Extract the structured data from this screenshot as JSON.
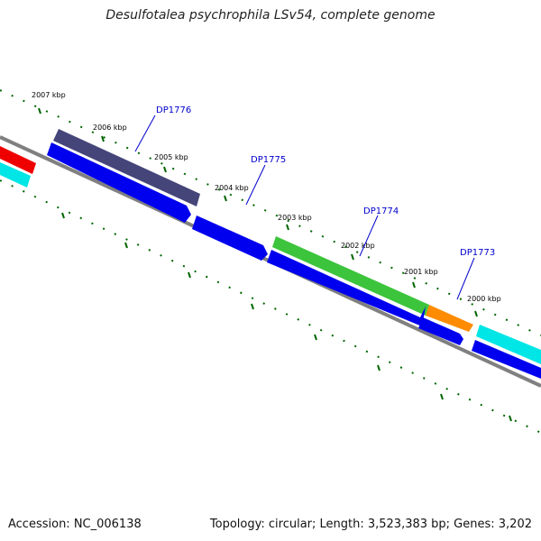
{
  "header": {
    "title": "Desulfotalea psychrophila LSv54, complete genome"
  },
  "footer": {
    "accession": "Accession: NC_006138",
    "summary": "Topology: circular; Length: 3,523,383 bp; Genes: 3,202"
  },
  "ticks": [
    {
      "label": "2007 kbp"
    },
    {
      "label": "2006 kbp"
    },
    {
      "label": "2005 kbp"
    },
    {
      "label": "2004 kbp"
    },
    {
      "label": "2003 kbp"
    },
    {
      "label": "2002 kbp"
    },
    {
      "label": "2001 kbp"
    },
    {
      "label": "2000 kbp"
    }
  ],
  "gene_labels": [
    {
      "label": "DP1776"
    },
    {
      "label": "DP1775"
    },
    {
      "label": "DP1774"
    },
    {
      "label": "DP1773"
    }
  ],
  "colors": {
    "backbone": "#808080",
    "tick": "#006600",
    "gene_blue": "#0000ee",
    "gene_navy": "#45457a",
    "gene_green": "#3cc43c",
    "gene_orange": "#ff8c00",
    "gene_red": "#ee0000",
    "gene_cyan": "#00e5e5",
    "label": "#0000cc"
  }
}
